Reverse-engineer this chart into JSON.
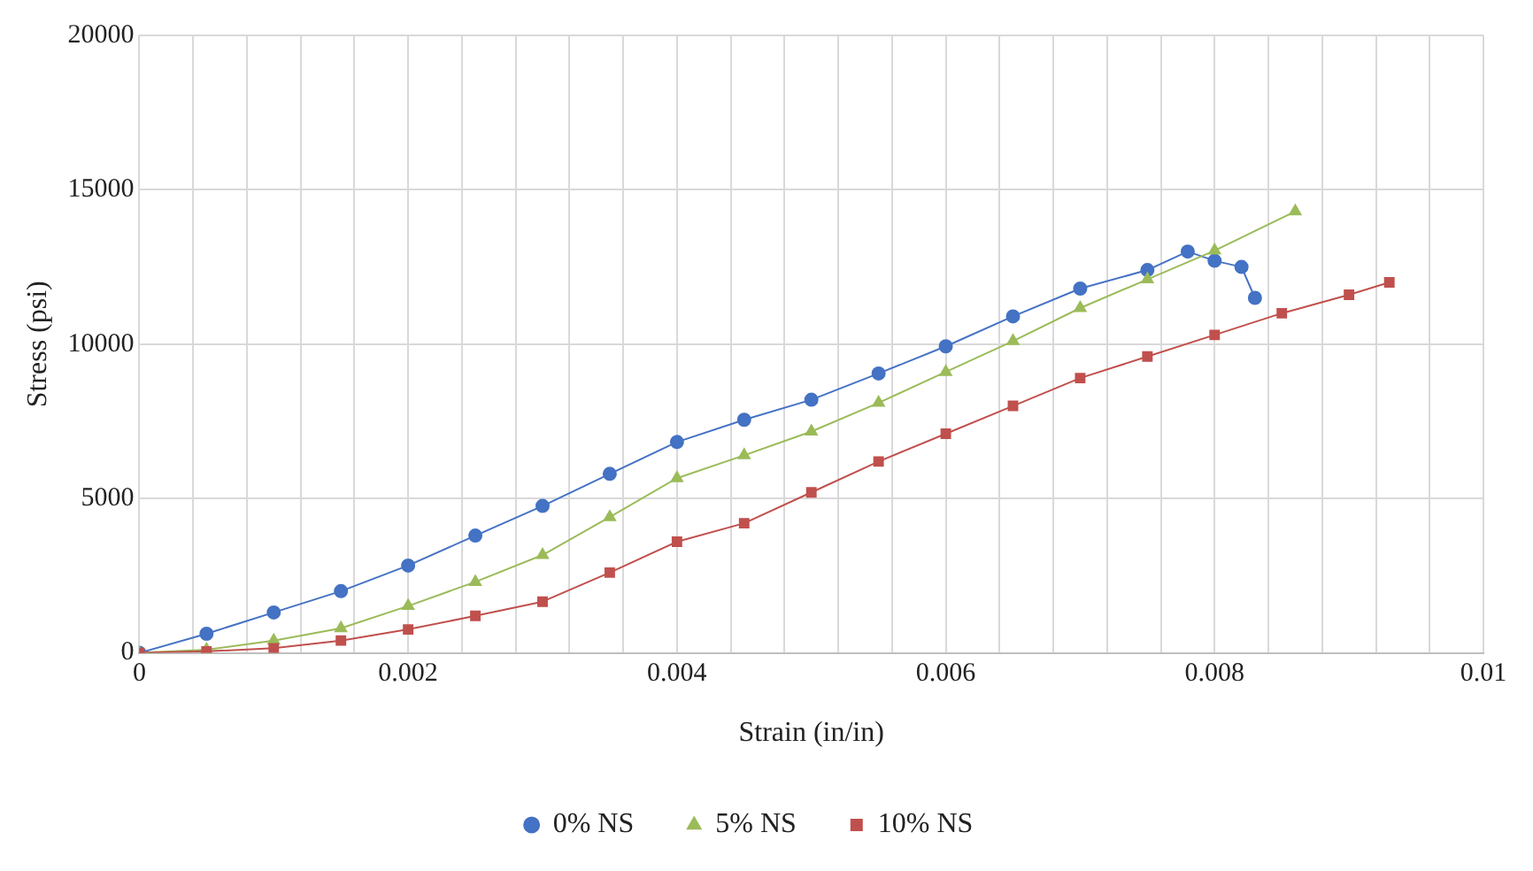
{
  "chart_data": {
    "type": "line",
    "xlabel": "Strain (in/in)",
    "ylabel": "Stress (psi)",
    "xlim": [
      0,
      0.01
    ],
    "xticks": [
      0,
      {
        "value": 0.0004,
        "label": null
      },
      {
        "value": 0.0008,
        "label": null
      },
      {
        "value": 0.0012,
        "label": null
      },
      {
        "value": 0.0016,
        "label": null
      },
      {
        "value": 0.002,
        "label": "0.002"
      },
      {
        "value": 0.0024,
        "label": null
      },
      {
        "value": 0.0028,
        "label": null
      },
      {
        "value": 0.0032,
        "label": null
      },
      {
        "value": 0.0036,
        "label": null
      },
      {
        "value": 0.004,
        "label": "0.004"
      },
      {
        "value": 0.0044,
        "label": null
      },
      {
        "value": 0.0048,
        "label": null
      },
      {
        "value": 0.0052,
        "label": null
      },
      {
        "value": 0.0056,
        "label": null
      },
      {
        "value": 0.006,
        "label": "0.006"
      },
      {
        "value": 0.0064,
        "label": null
      },
      {
        "value": 0.0068,
        "label": null
      },
      {
        "value": 0.0072,
        "label": null
      },
      {
        "value": 0.0076,
        "label": null
      },
      {
        "value": 0.008,
        "label": "0.008"
      },
      {
        "value": 0.0084,
        "label": null
      },
      {
        "value": 0.0088,
        "label": null
      },
      {
        "value": 0.0092,
        "label": null
      },
      {
        "value": 0.0096,
        "label": null
      },
      0.01
    ],
    "ylim": [
      0,
      20000
    ],
    "yticks": [
      0,
      5000,
      10000,
      15000,
      20000
    ],
    "grid": true,
    "legend": "bottom",
    "series": [
      {
        "name": "0% NS",
        "color": "#4472c4",
        "marker": "circle",
        "x": [
          0,
          0.0005,
          0.001,
          0.0015,
          0.002,
          0.0025,
          0.003,
          0.0035,
          0.004,
          0.0045,
          0.005,
          0.0055,
          0.006,
          0.0065,
          0.007,
          0.0075,
          0.0078,
          0.008,
          0.0082,
          0.0083
        ],
        "values": [
          0,
          620,
          1310,
          2000,
          2830,
          3800,
          4760,
          5800,
          6830,
          7550,
          8200,
          9050,
          9930,
          10900,
          11800,
          12400,
          13000,
          12700,
          12500,
          11500
        ]
      },
      {
        "name": "5% NS",
        "color": "#9bbb59",
        "marker": "triangle",
        "x": [
          0,
          0.0005,
          0.001,
          0.0015,
          0.002,
          0.0025,
          0.003,
          0.0035,
          0.004,
          0.0045,
          0.005,
          0.0055,
          0.006,
          0.0065,
          0.007,
          0.0075,
          0.008,
          0.0086
        ],
        "values": [
          0,
          100,
          400,
          800,
          1520,
          2300,
          3170,
          4400,
          5660,
          6400,
          7170,
          8100,
          9100,
          10100,
          11170,
          12100,
          13030,
          14300
        ]
      },
      {
        "name": "10% NS",
        "color": "#c0504d",
        "marker": "square",
        "x": [
          0,
          0.0005,
          0.001,
          0.0015,
          0.002,
          0.0025,
          0.003,
          0.0035,
          0.004,
          0.0045,
          0.005,
          0.0055,
          0.006,
          0.0065,
          0.007,
          0.0075,
          0.008,
          0.0085,
          0.009,
          0.0093
        ],
        "values": [
          0,
          50,
          150,
          400,
          760,
          1200,
          1660,
          2600,
          3600,
          4200,
          5200,
          6200,
          7100,
          8000,
          8900,
          9600,
          10300,
          11000,
          11600,
          12000
        ]
      }
    ]
  }
}
